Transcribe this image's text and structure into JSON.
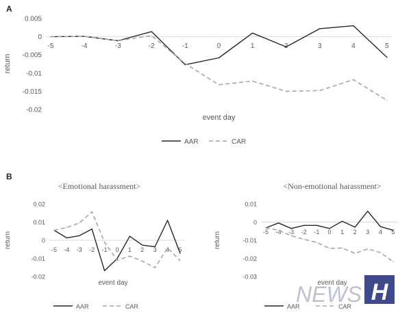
{
  "panel_labels": {
    "a": "A",
    "b": "B"
  },
  "legend": {
    "aar": "AAR",
    "car": "CAR"
  },
  "watermark": {
    "text": "NEWS",
    "letter": "H"
  },
  "colors": {
    "aar": "#262626",
    "car": "#a6a6a6",
    "axis": "#d9d9d9",
    "watermark": "#3f4a8c"
  },
  "chart_data": [
    {
      "type": "line",
      "title": "",
      "xlabel": "event day",
      "ylabel": "return",
      "x": [
        -5,
        -4,
        -3,
        -2,
        -1,
        0,
        1,
        2,
        3,
        4,
        5
      ],
      "ylim": [
        -0.02,
        0.005
      ],
      "yticks": [
        0.005,
        0,
        -0.005,
        -0.01,
        -0.015,
        -0.02
      ],
      "ytick_labels": [
        "0.005",
        "0",
        "-0.005",
        "-0.01",
        "-0.015",
        "-0.02"
      ],
      "xtick_labels": [
        "-5",
        "-4",
        "-3",
        "-2",
        "-1",
        "0",
        "1",
        "2",
        "3",
        "4",
        "5"
      ],
      "legend_position": "bottom",
      "series": [
        {
          "name": "AAR",
          "values": [
            0.0,
            0.0001,
            -0.0011,
            0.0014,
            -0.0077,
            -0.0058,
            0.001,
            -0.0028,
            0.0022,
            0.003,
            -0.0057
          ]
        },
        {
          "name": "CAR",
          "values": [
            0.0,
            0.0001,
            -0.0011,
            0.0003,
            -0.0074,
            -0.0132,
            -0.0122,
            -0.015,
            -0.0148,
            -0.0118,
            -0.0175
          ]
        }
      ]
    },
    {
      "type": "line",
      "title": "<Emotional harassment>",
      "xlabel": "event day",
      "ylabel": "return",
      "x": [
        -5,
        -4,
        -3,
        -2,
        -1,
        0,
        1,
        2,
        3,
        4,
        5
      ],
      "ylim": [
        -0.02,
        0.02
      ],
      "yticks": [
        0.02,
        0.01,
        0,
        -0.01,
        -0.02
      ],
      "ytick_labels": [
        "0.02",
        "0.01",
        "0",
        "-0.01",
        "-0.02"
      ],
      "xtick_labels": [
        "-5",
        "-4",
        "-3",
        "-2",
        "-1",
        "0",
        "1",
        "2",
        "3",
        "4",
        "5"
      ],
      "legend_position": "bottom",
      "series": [
        {
          "name": "AAR",
          "values": [
            0.0055,
            0.0013,
            0.0025,
            0.0062,
            -0.0168,
            -0.0102,
            0.0022,
            -0.0027,
            -0.0036,
            0.011,
            -0.0072
          ]
        },
        {
          "name": "CAR",
          "values": [
            0.0055,
            0.007,
            0.0095,
            0.0157,
            -0.0011,
            -0.011,
            -0.0088,
            -0.0115,
            -0.0152,
            -0.0042,
            -0.0113
          ]
        }
      ]
    },
    {
      "type": "line",
      "title": "<Non-emotional harassment>",
      "xlabel": "event day",
      "ylabel": "return",
      "x": [
        -5,
        -4,
        -3,
        -2,
        -1,
        0,
        1,
        2,
        3,
        4,
        5
      ],
      "ylim": [
        -0.03,
        0.01
      ],
      "yticks": [
        0.01,
        0,
        -0.01,
        -0.02,
        -0.03
      ],
      "ytick_labels": [
        "0.01",
        "0",
        "-0.01",
        "-0.02",
        "-0.03"
      ],
      "xtick_labels": [
        "-5",
        "-4",
        "-3",
        "-2",
        "-1",
        "0",
        "1",
        "2",
        "3",
        "4",
        "5"
      ],
      "legend_position": "bottom",
      "series": [
        {
          "name": "AAR",
          "values": [
            -0.0032,
            -0.0005,
            -0.0035,
            -0.0018,
            -0.0018,
            -0.0035,
            0.0005,
            -0.0028,
            0.006,
            -0.0025,
            -0.0045
          ]
        },
        {
          "name": "CAR",
          "values": [
            -0.0032,
            -0.0045,
            -0.0075,
            -0.0095,
            -0.0112,
            -0.0145,
            -0.0143,
            -0.0172,
            -0.0148,
            -0.0168,
            -0.0218
          ]
        }
      ]
    }
  ]
}
